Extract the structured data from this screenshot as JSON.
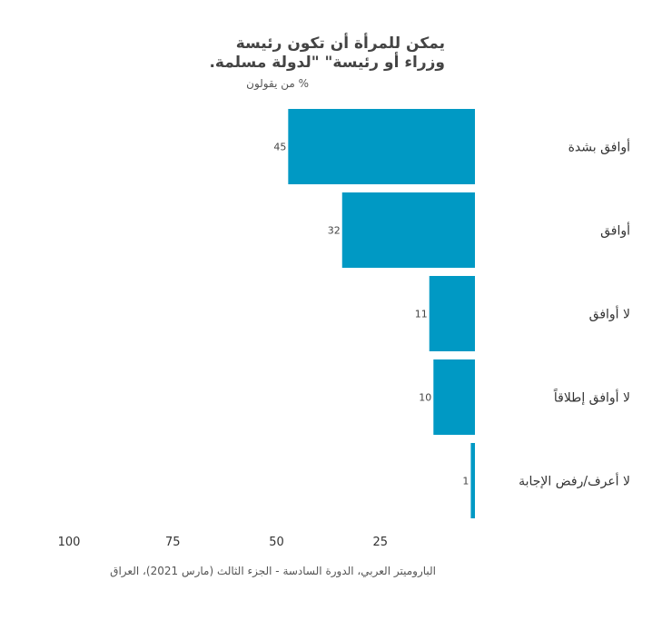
{
  "chart_data": {
    "type": "bar",
    "orientation": "horizontal",
    "title": "يمكن للمرأة أن تكون رئيسة وزراء أو رئيسة\" \"لدولة مسلمة.",
    "subtitle": "% من يقولون",
    "categories": [
      "أوافق بشدة",
      "أوافق",
      "لا أوافق",
      "لا أوافق إطلاقاً",
      "لا أعرف/رفض الإجابة"
    ],
    "values": [
      45,
      32,
      11,
      10,
      1
    ],
    "value_labels": [
      "45",
      "32",
      "11",
      "10",
      "1"
    ],
    "xlim": [
      0,
      100
    ],
    "x_ticks": [
      "100",
      "75",
      "50",
      "25"
    ],
    "x_tick_values": [
      100,
      75,
      50,
      25
    ],
    "bar_color": "#0099c4",
    "grid": false,
    "legend": false
  },
  "source": "الباروميتر العربي، الدورة السادسة - الجزء الثالث (مارس 2021)، العراق"
}
